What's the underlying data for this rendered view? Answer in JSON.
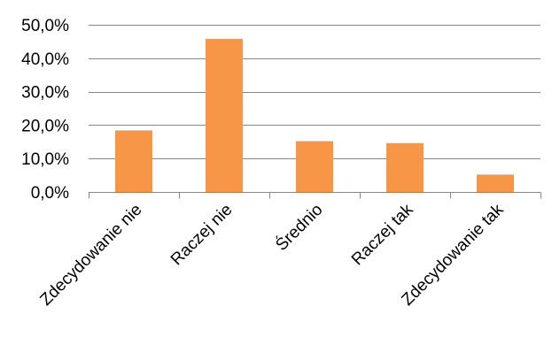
{
  "chart_data": {
    "type": "bar",
    "title": "",
    "xlabel": "",
    "ylabel": "",
    "categories": [
      "Zdecydowanie nie",
      "Raczej nie",
      "Średnio",
      "Raczej tak",
      "Zdecydowanie tak"
    ],
    "values": [
      18.4,
      45.8,
      15.2,
      14.6,
      5.2
    ],
    "ylim": [
      0,
      50
    ],
    "ytick_values": [
      0,
      10,
      20,
      30,
      40,
      50
    ],
    "ytick_labels": [
      "0,0%",
      "10,0%",
      "20,0%",
      "30,0%",
      "40,0%",
      "50,0%"
    ],
    "grid": true,
    "legend": "none",
    "colors": {
      "bar": "#F79646",
      "grid": "#878787",
      "axis": "#878787",
      "text": "#000000"
    }
  }
}
